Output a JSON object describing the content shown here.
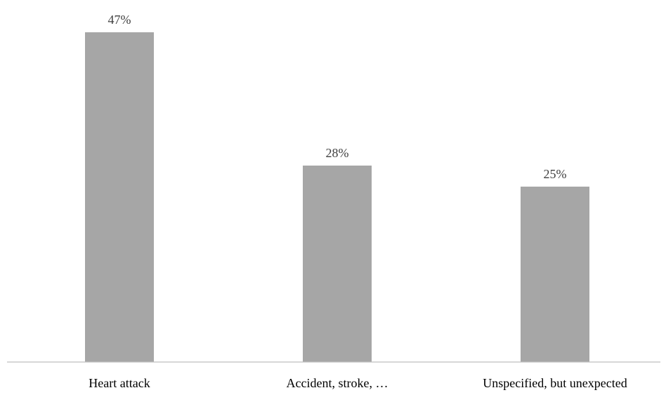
{
  "chart_data": {
    "type": "bar",
    "categories": [
      "Heart attack",
      "Accident, stroke, …",
      "Unspecified, but unexpected"
    ],
    "values": [
      47,
      28,
      25
    ],
    "data_labels": [
      "47%",
      "28%",
      "25%"
    ],
    "title": "",
    "xlabel": "",
    "ylabel": "",
    "ylim": [
      0,
      50
    ],
    "grid": false,
    "legend": "none",
    "bar_color": "#a6a6a6",
    "axis_color": "#bfbfbf"
  }
}
